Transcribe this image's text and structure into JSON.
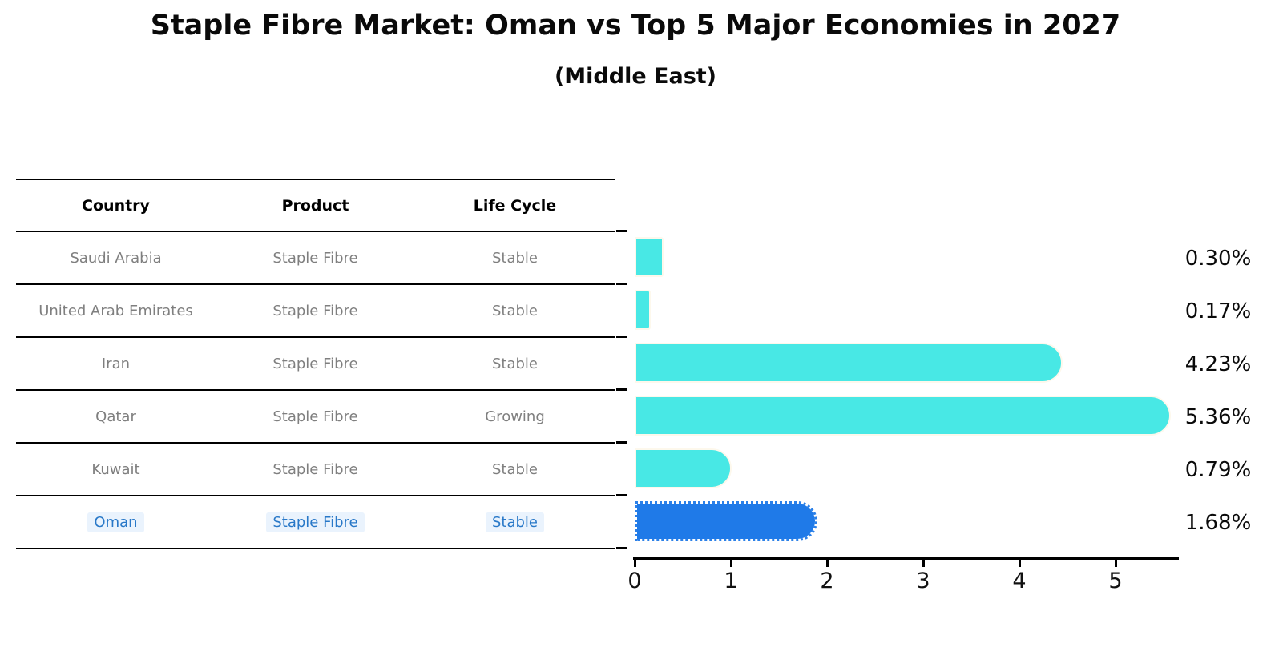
{
  "page": {
    "title": "Staple Fibre Market: Oman vs Top 5 Major Economies in 2027",
    "subtitle": "(Middle East)"
  },
  "table": {
    "headers": [
      "Country",
      "Product",
      "Life Cycle"
    ],
    "rows": [
      {
        "country": "Saudi Arabia",
        "product": "Staple Fibre",
        "life_cycle": "Stable",
        "highlighted": false
      },
      {
        "country": "United Arab Emirates",
        "product": "Staple Fibre",
        "life_cycle": "Stable",
        "highlighted": false
      },
      {
        "country": "Iran",
        "product": "Staple Fibre",
        "life_cycle": "Stable",
        "highlighted": false
      },
      {
        "country": "Qatar",
        "product": "Staple Fibre",
        "life_cycle": "Growing",
        "highlighted": false
      },
      {
        "country": "Kuwait",
        "product": "Staple Fibre",
        "life_cycle": "Stable",
        "highlighted": false
      },
      {
        "country": "Oman",
        "product": "Staple Fibre",
        "life_cycle": "Stable",
        "highlighted": true
      }
    ]
  },
  "chart_data": {
    "type": "bar",
    "orientation": "horizontal",
    "title": "Staple Fibre Market: Oman vs Top 5 Major Economies in 2027",
    "subtitle": "(Middle East)",
    "categories": [
      "Saudi Arabia",
      "United Arab Emirates",
      "Iran",
      "Qatar",
      "Kuwait",
      "Oman"
    ],
    "values": [
      0.3,
      0.17,
      4.23,
      5.36,
      0.79,
      1.68
    ],
    "value_labels": [
      "0.30%",
      "0.17%",
      "4.23%",
      "5.36%",
      "0.79%",
      "1.68%"
    ],
    "x_ticks": [
      0,
      1,
      2,
      3,
      4,
      5
    ],
    "xlim": [
      0,
      5.6
    ],
    "grid": false,
    "legend": false,
    "bar_color": "#48e8e5",
    "highlight_color": "#1f7ae8",
    "highlight_index": 5,
    "highlight_text_color": "#2878c8"
  }
}
